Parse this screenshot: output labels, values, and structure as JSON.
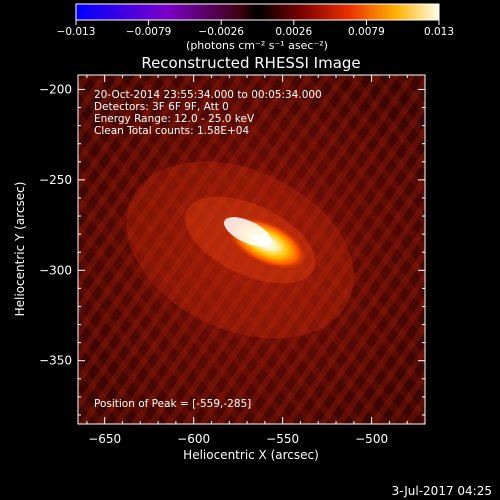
{
  "colorbar": {
    "ticks": [
      "-0.013",
      "-0.0079",
      "-0.0026",
      "0.0026",
      "0.0079",
      "0.013"
    ],
    "units": "(photons cm⁻² s⁻¹ asec⁻²)",
    "stops": [
      {
        "offset": 0.0,
        "color": "#0000ff"
      },
      {
        "offset": 0.25,
        "color": "#7a00c8"
      },
      {
        "offset": 0.45,
        "color": "#400010"
      },
      {
        "offset": 0.5,
        "color": "#000000"
      },
      {
        "offset": 0.62,
        "color": "#7a0000"
      },
      {
        "offset": 0.75,
        "color": "#e83000"
      },
      {
        "offset": 0.88,
        "color": "#ffb000"
      },
      {
        "offset": 1.0,
        "color": "#ffffe8"
      }
    ]
  },
  "chart_data": {
    "type": "heatmap",
    "title": "Reconstructed RHESSI Image",
    "xlabel": "Heliocentric X (arcsec)",
    "ylabel": "Heliocentric Y (arcsec)",
    "xlim": [
      -665,
      -470
    ],
    "ylim": [
      -385,
      -192
    ],
    "xticks": [
      -650,
      -600,
      -550,
      -500
    ],
    "yticks": [
      -200,
      -250,
      -300,
      -350
    ],
    "xtick_labels": [
      "−650",
      "−600",
      "−550",
      "−500"
    ],
    "ytick_labels": [
      "−200",
      "−250",
      "−300",
      "−350"
    ],
    "annotations": [
      "20-Oct-2014 23:55:34.000 to 00:05:34.000",
      "Detectors: 3F 6F 9F, Att 0",
      "Energy Range: 12.0 - 25.0 keV",
      "Clean    Total counts: 1.58E+04"
    ],
    "peak_label": "Position of Peak = [-559,-285]",
    "peak": {
      "x": -559,
      "y": -285,
      "value": 0.013
    },
    "colormap_range": [
      -0.013,
      0.013
    ]
  },
  "footer": {
    "timestamp": "3-Jul-2017 04:25"
  }
}
